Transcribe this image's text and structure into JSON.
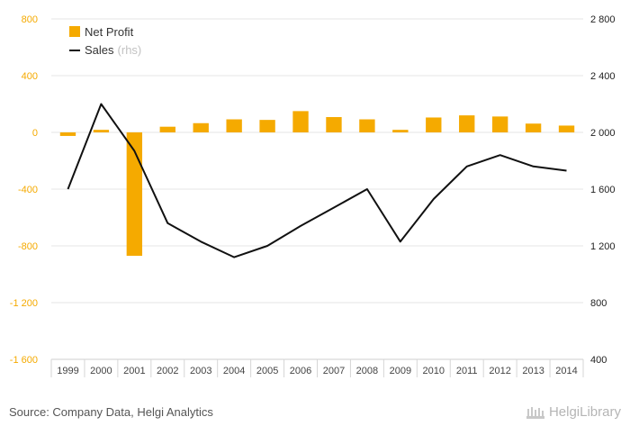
{
  "chart_data": {
    "type": "bar",
    "categories": [
      "1999",
      "2000",
      "2001",
      "2002",
      "2003",
      "2004",
      "2005",
      "2006",
      "2007",
      "2008",
      "2009",
      "2010",
      "2011",
      "2012",
      "2013",
      "2014"
    ],
    "series": [
      {
        "name": "Net Profit",
        "kind": "bar",
        "axis": "left",
        "color": "#f5aa00",
        "values": [
          -25,
          18,
          -870,
          40,
          65,
          92,
          88,
          150,
          108,
          92,
          18,
          105,
          120,
          112,
          62,
          48
        ]
      },
      {
        "name": "Sales",
        "name_suffix": "(rhs)",
        "kind": "line",
        "axis": "right",
        "color": "#111111",
        "values": [
          1600,
          2200,
          1870,
          1360,
          1230,
          1120,
          1200,
          1340,
          1470,
          1600,
          1230,
          1530,
          1760,
          1840,
          1760,
          1730
        ]
      }
    ],
    "ylim_left": [
      -1600,
      800
    ],
    "yticks_left": [
      "800",
      "400",
      "0",
      "-400",
      "-800",
      "-1 200",
      "-1 600"
    ],
    "ylim_right": [
      400,
      2800
    ],
    "yticks_right": [
      "2 800",
      "2 400",
      "2 000",
      "1 600",
      "1 200",
      "800",
      "400"
    ],
    "grid": true,
    "legend_position": "top-left",
    "left_axis_color": "#f5aa00"
  },
  "footer": {
    "source": "Source: Company Data, Helgi Analytics",
    "brand": "HelgiLibrary"
  }
}
